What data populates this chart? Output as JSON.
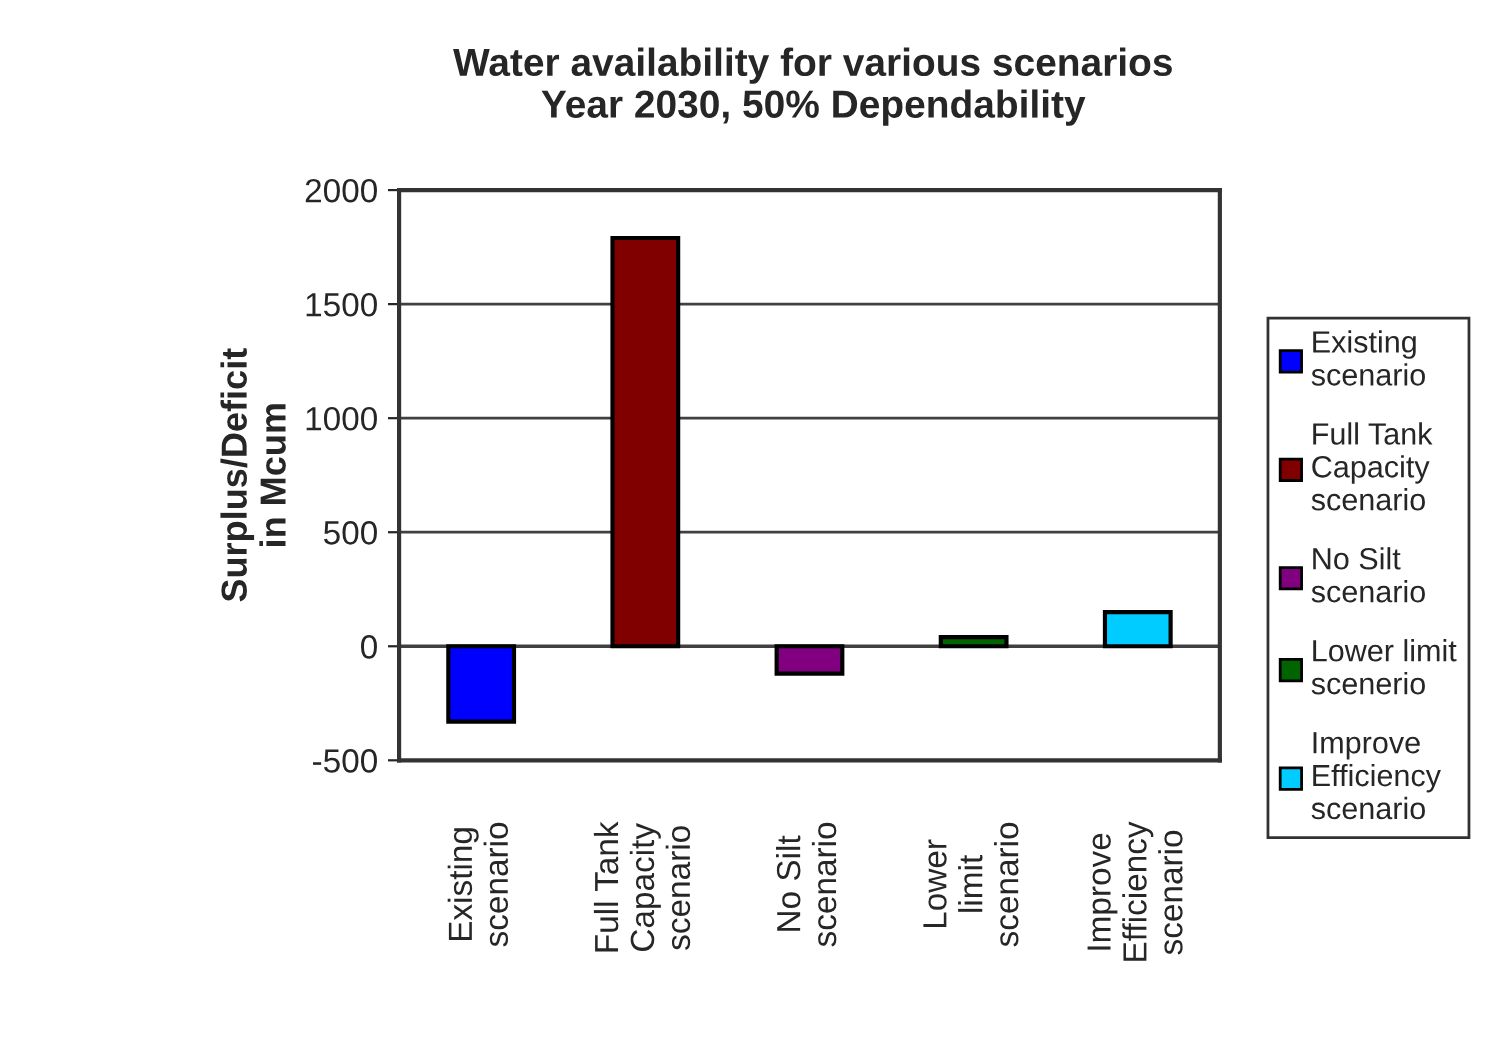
{
  "chart_data": {
    "type": "bar",
    "title": "Water availability for various scenarios",
    "subtitle": "Year 2030, 50% Dependability",
    "ylabel": "Surplus/Deficit in Mcum",
    "categories": [
      "Existing scenario",
      "Full Tank Capacity scenario",
      "No Silt scenario",
      "Lower limit scenario",
      "Improve Efficiency scenario"
    ],
    "series": [
      {
        "name": "Existing scenario",
        "color": "#0000ff",
        "values": [
          -330,
          null,
          null,
          null,
          null
        ]
      },
      {
        "name": "Full Tank Capacity scenario",
        "color": "#800000",
        "values": [
          null,
          1790,
          null,
          null,
          null
        ]
      },
      {
        "name": "No Silt scenario",
        "color": "#800080",
        "values": [
          null,
          null,
          -120,
          null,
          null
        ]
      },
      {
        "name": "Lower limit scenerio",
        "color": "#006400",
        "values": [
          null,
          null,
          null,
          40,
          null
        ]
      },
      {
        "name": "Improve Efficiency scenario",
        "color": "#00ccff",
        "values": [
          null,
          null,
          null,
          null,
          150
        ]
      }
    ],
    "ylim": [
      -500,
      2000
    ],
    "yticks": [
      -500,
      0,
      500,
      1000,
      1500,
      2000
    ],
    "grid": "y",
    "legend": "right"
  }
}
